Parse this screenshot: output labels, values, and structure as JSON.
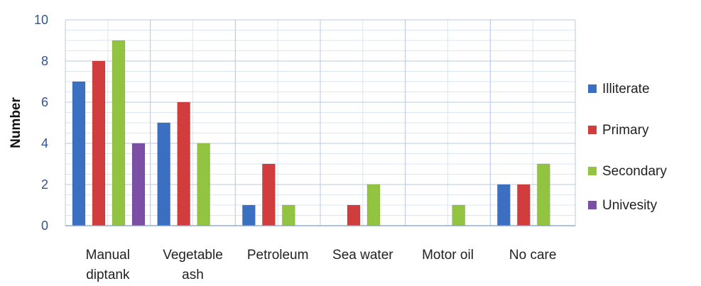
{
  "chart_data": {
    "type": "bar",
    "title": "",
    "xlabel": "",
    "ylabel": "Number",
    "ylim": [
      0,
      10
    ],
    "yticks": [
      0,
      2,
      4,
      6,
      8,
      10
    ],
    "grid": true,
    "legend_position": "right",
    "categories": [
      [
        "Manual",
        "diptank"
      ],
      [
        "Vegetable",
        "ash"
      ],
      [
        "Petroleum"
      ],
      [
        "Sea water"
      ],
      [
        "Motor oil"
      ],
      [
        "No care"
      ]
    ],
    "series": [
      {
        "name": "Illiterate",
        "values": [
          7,
          5,
          1,
          0,
          0,
          2
        ],
        "color": "#3a6fc2"
      },
      {
        "name": "Primary",
        "values": [
          8,
          6,
          3,
          1,
          0,
          2
        ],
        "color": "#d13d3d"
      },
      {
        "name": "Secondary",
        "values": [
          9,
          4,
          1,
          2,
          1,
          3
        ],
        "color": "#93c441"
      },
      {
        "name": "Univesity",
        "values": [
          4,
          0,
          0,
          0,
          0,
          0
        ],
        "color": "#7b4fa6"
      }
    ]
  }
}
